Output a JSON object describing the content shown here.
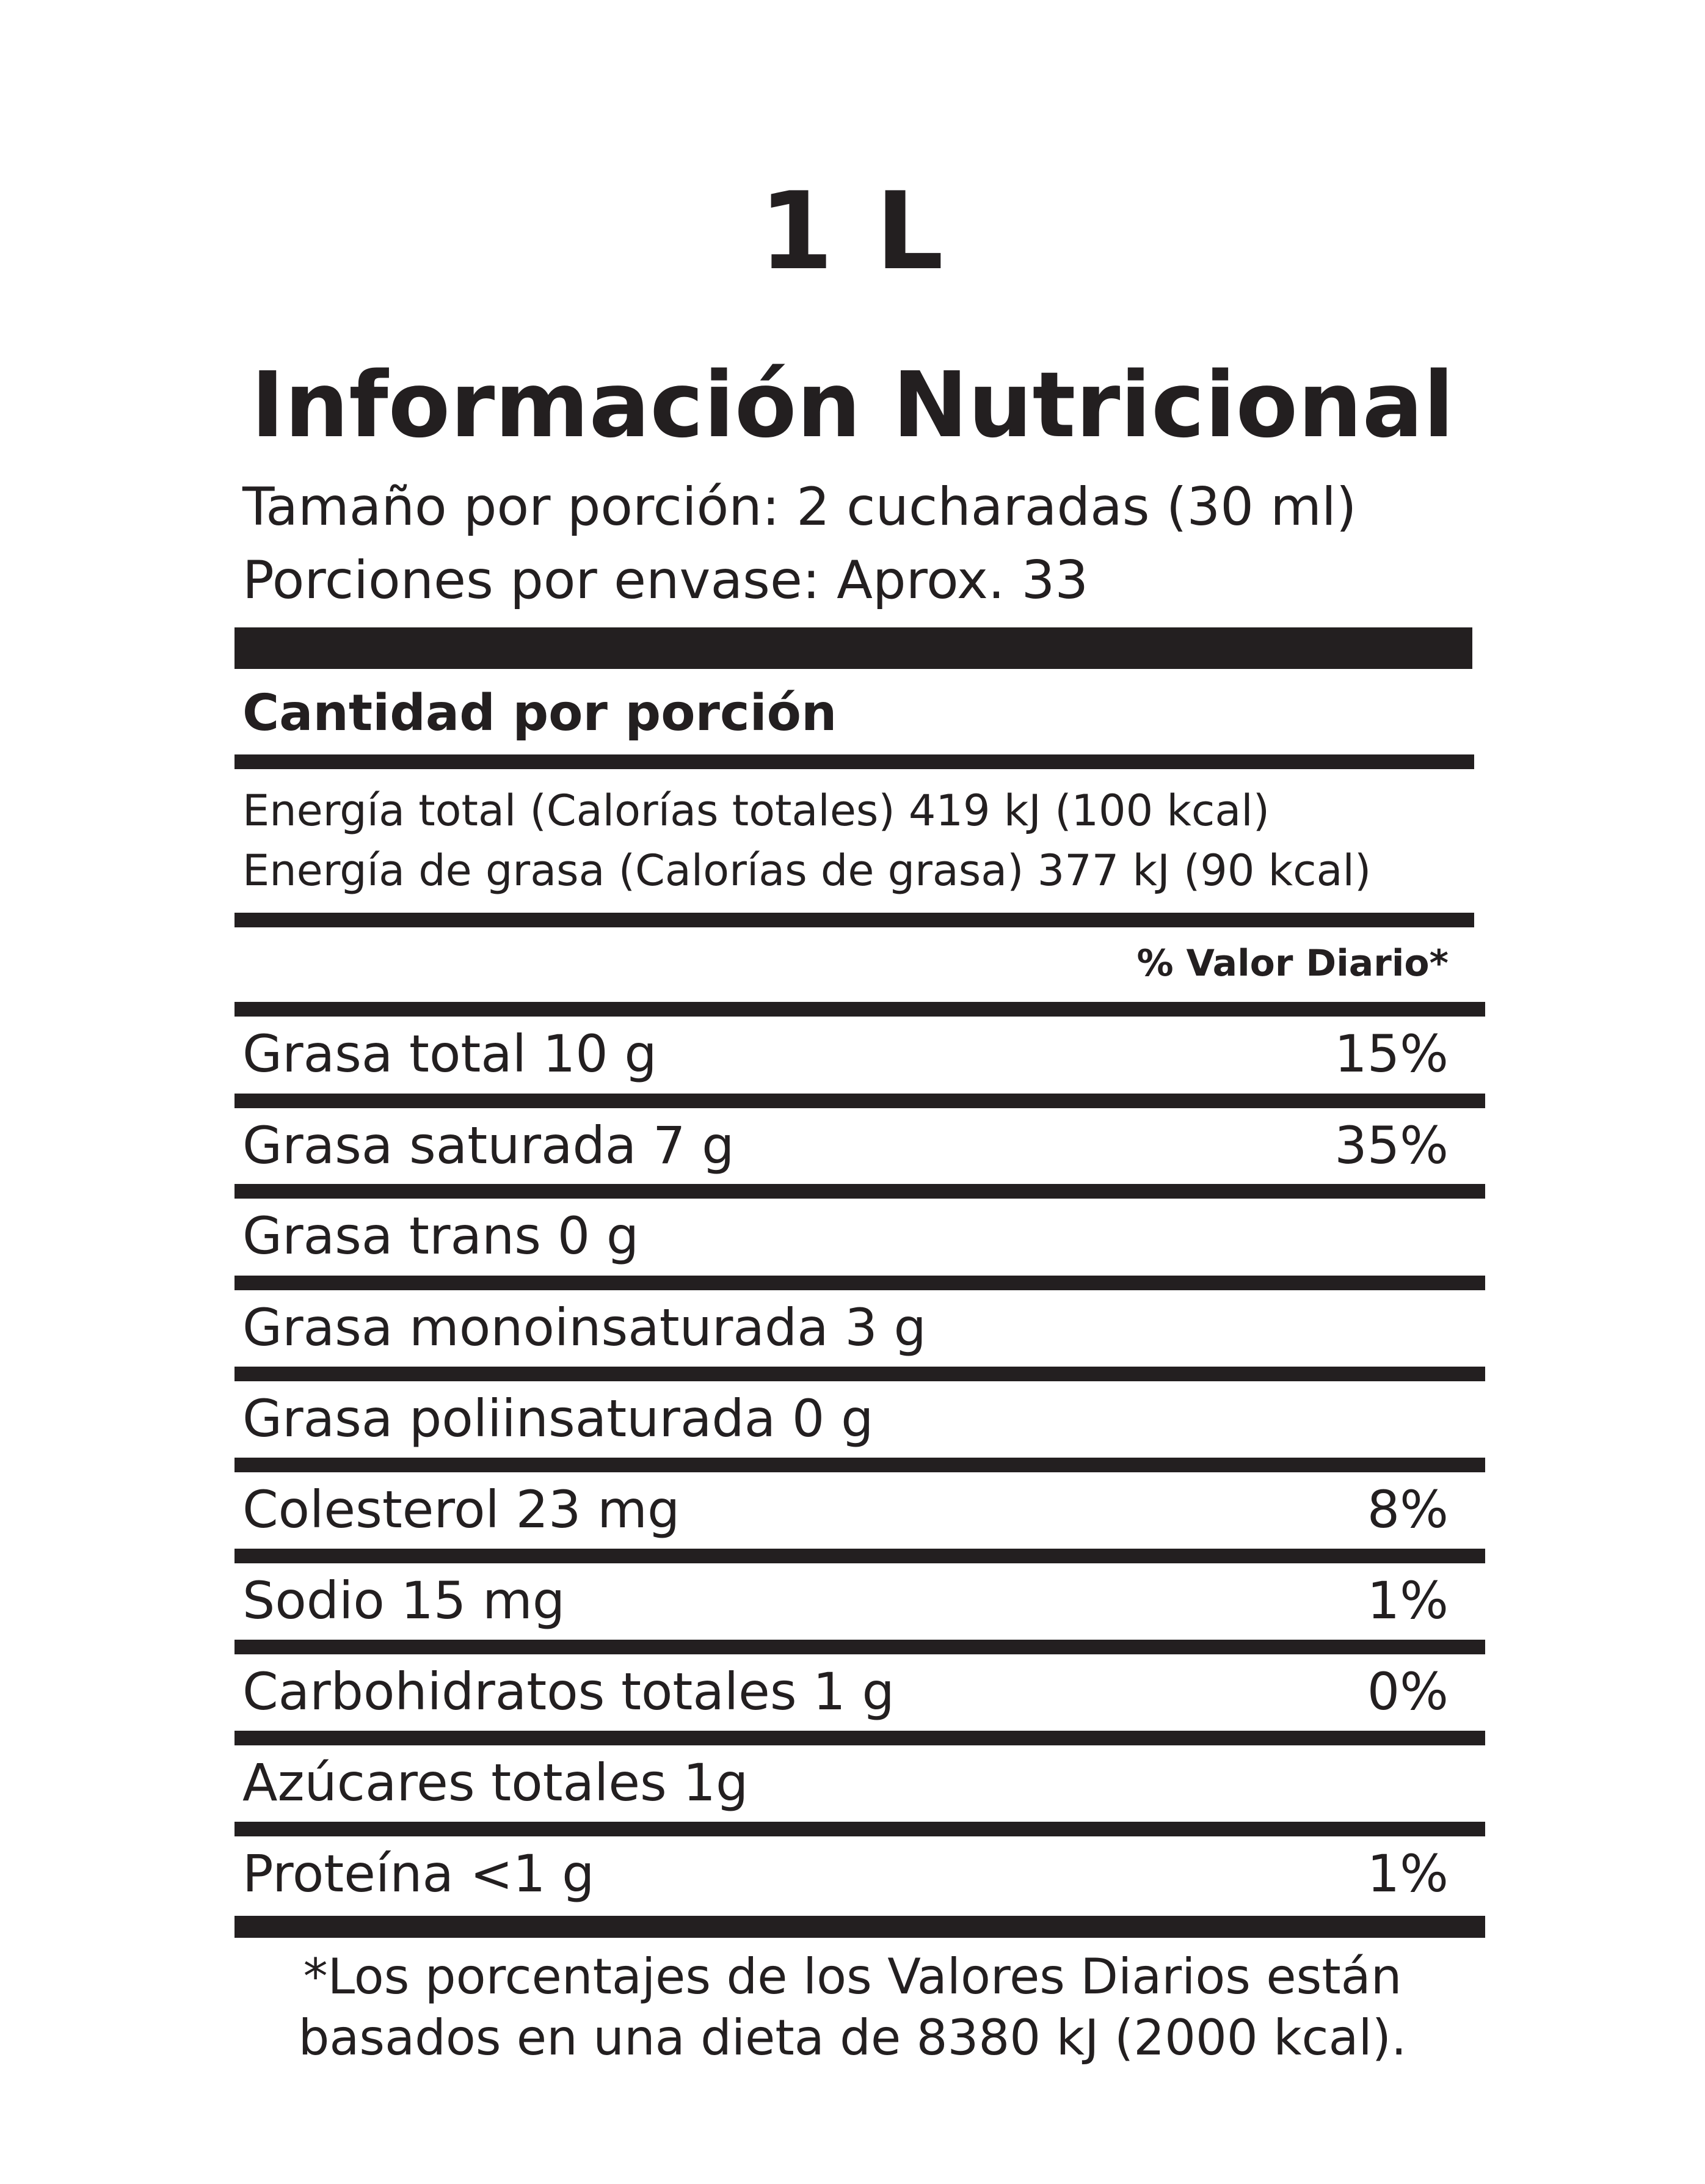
{
  "volume": "1 L",
  "title": "Información Nutricional",
  "serving_size": "Tamaño por porción: 2 cucharadas (30 ml)",
  "servings_per_container": "Porciones por envase: Aprox. 33",
  "amount_per_serving": "Cantidad por porción",
  "energy_total": "Energía total (Calorías totales) 419 kJ (100 kcal)",
  "energy_fat": "Energía de grasa (Calorías de grasa) 377 kJ (90 kcal)",
  "daily_value_header": "% Valor Diario*",
  "nutrients": [
    {
      "label": "Grasa total  10 g",
      "pct": "15%"
    },
    {
      "label": "Grasa saturada 7 g",
      "pct": "35%"
    },
    {
      "label": "Grasa trans 0 g",
      "pct": ""
    },
    {
      "label": "Grasa monoinsaturada 3 g",
      "pct": ""
    },
    {
      "label": "Grasa poliinsaturada 0 g",
      "pct": ""
    },
    {
      "label": "Colesterol  23 mg",
      "pct": "8%"
    },
    {
      "label": "Sodio 15 mg",
      "pct": "1%"
    },
    {
      "label": "Carbohidratos totales 1 g",
      "pct": "0%"
    },
    {
      "label": "Azúcares totales 1g",
      "pct": ""
    },
    {
      "label": "Proteína <1 g",
      "pct": "1%"
    }
  ],
  "footnote_line1": "*Los porcentajes de los Valores Diarios están",
  "footnote_line2": "basados en una dieta de 8380 kJ (2000 kcal).",
  "colors": {
    "ink": "#231f20",
    "background": "#ffffff"
  }
}
